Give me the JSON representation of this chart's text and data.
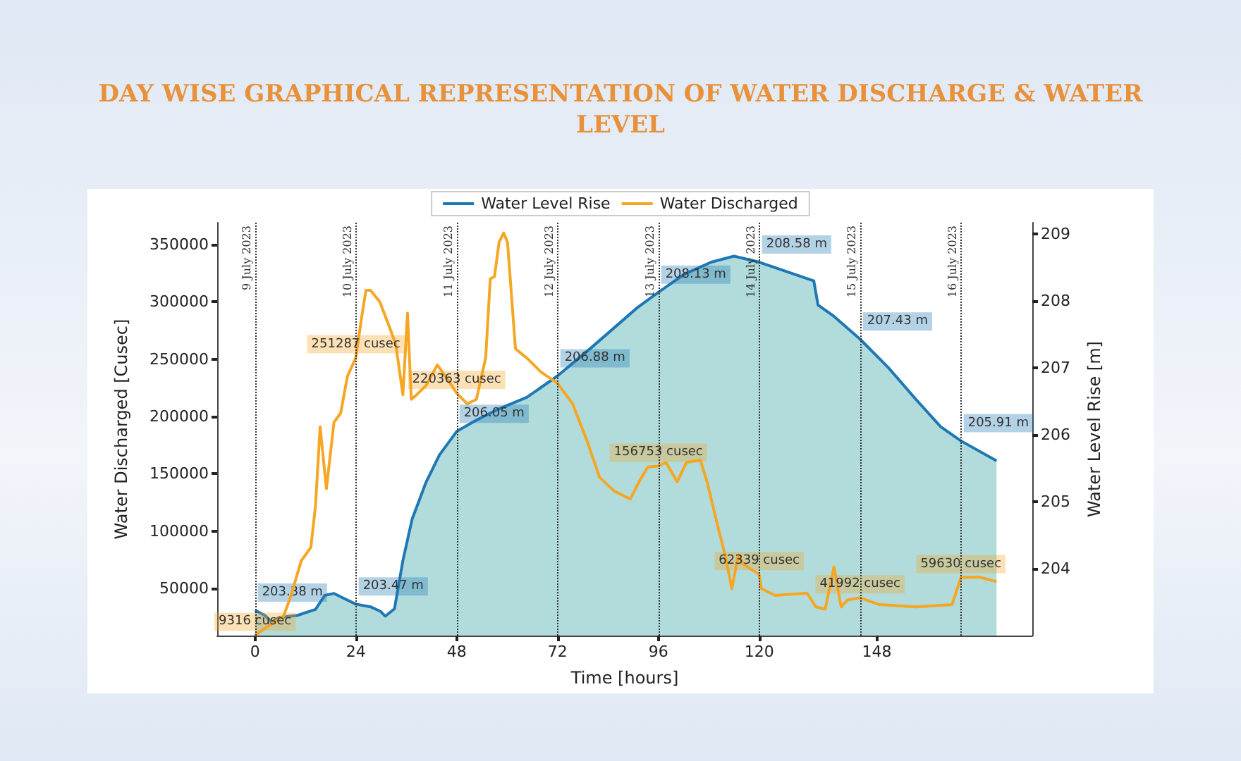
{
  "chart_data": {
    "type": "line",
    "title": "DAY WISE GRAPHICAL REPRESENTATION OF WATER DISCHARGE & WATER LEVEL",
    "xlabel": "Time [hours]",
    "ylabel": "Water Discharged [Cusec]",
    "y2label": "Water Level Rise [m]",
    "xlim": [
      -9,
      185
    ],
    "xticks": [
      0,
      24,
      48,
      72,
      96,
      120,
      148
    ],
    "ylim": [
      9000,
      369000
    ],
    "yticks": [
      50000,
      100000,
      150000,
      200000,
      250000,
      300000,
      350000
    ],
    "y2lim": [
      203,
      209.17
    ],
    "y2ticks": [
      204,
      205,
      206,
      207,
      208,
      209
    ],
    "grid": false,
    "legend": "top",
    "marker": "none",
    "line_style": "solid",
    "series": [
      {
        "name": "Water Level Rise",
        "type": "area",
        "axis": "y2",
        "color": "#1f77b4",
        "x": [
          0,
          2.4,
          4,
          5.7,
          10,
          14.4,
          16.6,
          18.8,
          21,
          24,
          27.5,
          29.9,
          31,
          33.2,
          35.2,
          37.4,
          40.7,
          43.9,
          48,
          52.7,
          58.1,
          64.7,
          72,
          80,
          91,
          96,
          102.2,
          108.6,
          114,
          120,
          127,
          133,
          134,
          137.8,
          144,
          150.8,
          157.3,
          163.2,
          168,
          176.5
        ],
        "values": [
          203.38,
          203.3,
          203.2,
          203.27,
          203.3,
          203.39,
          203.6,
          203.63,
          203.56,
          203.47,
          203.43,
          203.36,
          203.29,
          203.4,
          204.12,
          204.74,
          205.29,
          205.7,
          206.05,
          206.22,
          206.39,
          206.56,
          206.88,
          207.3,
          207.9,
          208.13,
          208.4,
          208.58,
          208.67,
          208.58,
          208.43,
          208.3,
          207.94,
          207.77,
          207.43,
          207.0,
          206.53,
          206.12,
          205.91,
          205.61
        ],
        "value_labels": [
          "203.38 m",
          null,
          null,
          null,
          null,
          null,
          null,
          null,
          null,
          "203.47 m",
          null,
          null,
          null,
          null,
          null,
          null,
          null,
          null,
          "206.05 m",
          null,
          null,
          null,
          "206.88 m",
          null,
          null,
          "208.13 m",
          null,
          null,
          null,
          "208.58 m",
          null,
          null,
          null,
          null,
          "207.43 m",
          null,
          null,
          null,
          "205.91 m",
          null
        ]
      },
      {
        "name": "Water Discharged",
        "color": "#f5a623",
        "x": [
          0,
          3.5,
          6.8,
          8.4,
          11,
          13.3,
          14.4,
          15.5,
          17,
          18.8,
          20.4,
          22,
          24,
          25.4,
          26.4,
          27.5,
          29.7,
          31.9,
          33.5,
          35.2,
          36.3,
          37.2,
          38.5,
          40.7,
          43.4,
          46.1,
          48,
          50.5,
          52.7,
          54.9,
          56,
          57,
          58.1,
          59.2,
          60.1,
          62,
          64.7,
          68,
          72,
          75.6,
          79,
          82,
          85.5,
          89.3,
          91.4,
          93.5,
          96,
          97.8,
          100.5,
          102.7,
          106,
          107.6,
          109.7,
          111.9,
          113.5,
          115,
          116.3,
          120,
          120.5,
          123.8,
          131.4,
          133.5,
          135.7,
          137.8,
          139.5,
          141,
          144,
          148.6,
          157.3,
          165.9,
          168,
          172.4,
          176.5
        ],
        "values": [
          9316,
          18000,
          26000,
          42000,
          74000,
          86000,
          122000,
          191000,
          137000,
          195000,
          203000,
          235000,
          251287,
          287000,
          310000,
          310000,
          300000,
          279000,
          263000,
          219000,
          290000,
          215000,
          219000,
          227000,
          245000,
          231000,
          220363,
          211000,
          215000,
          251000,
          320000,
          322000,
          352000,
          360000,
          352000,
          259000,
          251000,
          239000,
          229000,
          211000,
          179000,
          147000,
          135000,
          128000,
          143000,
          156000,
          156753,
          160000,
          143000,
          160000,
          162000,
          143000,
          111000,
          79000,
          50000,
          79000,
          71000,
          62339,
          50000,
          44000,
          46000,
          34000,
          32000,
          69000,
          34000,
          40000,
          41992,
          36000,
          34000,
          36000,
          59630,
          60000,
          56000
        ],
        "value_labels": [
          "9316 cusec",
          null,
          null,
          null,
          null,
          null,
          null,
          null,
          null,
          null,
          null,
          null,
          "251287 cusec",
          null,
          null,
          null,
          null,
          null,
          null,
          null,
          null,
          null,
          null,
          null,
          null,
          null,
          "220363 cusec",
          null,
          null,
          null,
          null,
          null,
          null,
          null,
          null,
          null,
          null,
          null,
          null,
          null,
          null,
          null,
          null,
          null,
          null,
          null,
          "156753 cusec",
          null,
          null,
          null,
          null,
          null,
          null,
          null,
          null,
          null,
          null,
          "62339 cusec",
          null,
          null,
          null,
          null,
          null,
          null,
          null,
          null,
          "41992 cusec",
          null,
          null,
          null,
          "59630 cusec",
          null,
          null
        ]
      }
    ],
    "ref_lines": [
      {
        "axis": "x",
        "value": 0,
        "label": "9 July 2023",
        "color": "#333333",
        "line_style": "dotted"
      },
      {
        "axis": "x",
        "value": 24,
        "label": "10 July 2023",
        "color": "#333333",
        "line_style": "dotted"
      },
      {
        "axis": "x",
        "value": 48,
        "label": "11 July 2023",
        "color": "#333333",
        "line_style": "dotted"
      },
      {
        "axis": "x",
        "value": 72,
        "label": "12 July 2023",
        "color": "#333333",
        "line_style": "dotted"
      },
      {
        "axis": "x",
        "value": 96,
        "label": "13 July 2023",
        "color": "#333333",
        "line_style": "dotted"
      },
      {
        "axis": "x",
        "value": 120,
        "label": "14 July 2023",
        "color": "#333333",
        "line_style": "dotted"
      },
      {
        "axis": "x",
        "value": 144,
        "label": "15 July 2023",
        "color": "#333333",
        "line_style": "dotted"
      },
      {
        "axis": "x",
        "value": 168,
        "label": "16 July 2023",
        "color": "#333333",
        "line_style": "dotted"
      }
    ]
  }
}
